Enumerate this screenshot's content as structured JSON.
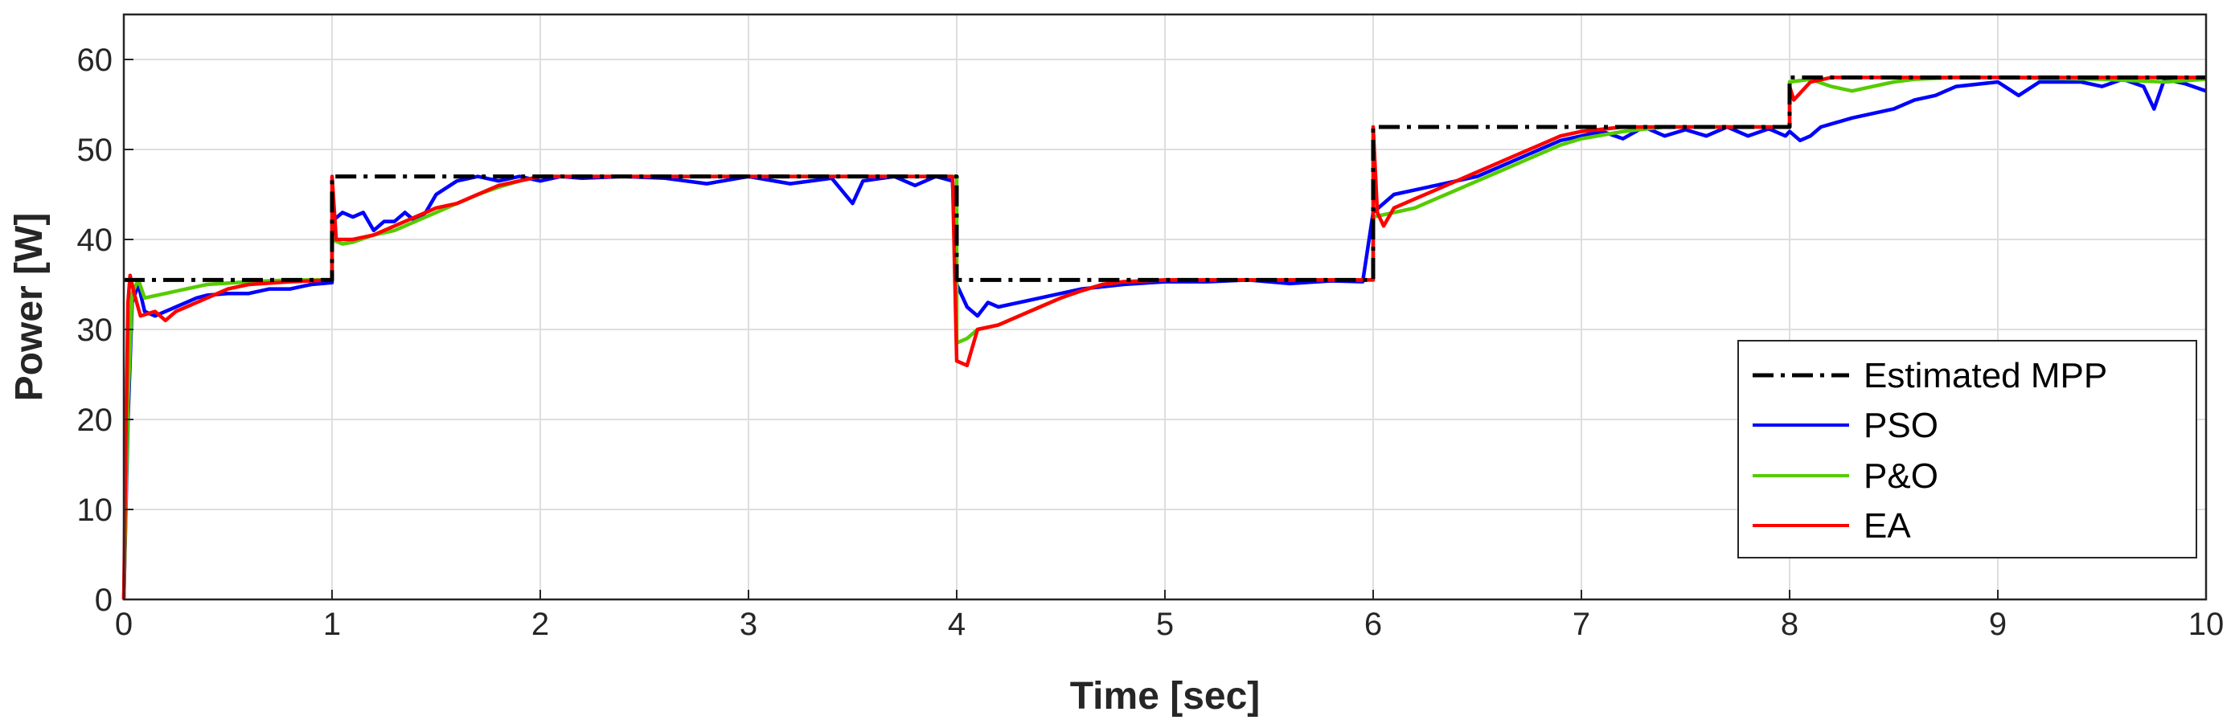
{
  "chart_data": {
    "type": "line",
    "title": "",
    "xlabel": "Time [sec]",
    "ylabel": "Power [W]",
    "xlim": [
      0,
      10
    ],
    "ylim": [
      0,
      65
    ],
    "xticks": [
      0,
      1,
      2,
      3,
      4,
      5,
      6,
      7,
      8,
      9,
      10
    ],
    "yticks": [
      0,
      10,
      20,
      30,
      40,
      50,
      60
    ],
    "grid": true,
    "legend_position": "bottom-right",
    "series": [
      {
        "name": "Estimated MPP",
        "color": "#000000",
        "style": "dash-dot",
        "points": [
          [
            0,
            35.5
          ],
          [
            1,
            35.5
          ],
          [
            1,
            47
          ],
          [
            4,
            47
          ],
          [
            4,
            35.5
          ],
          [
            6,
            35.5
          ],
          [
            6,
            52.5
          ],
          [
            8,
            52.5
          ],
          [
            8,
            58
          ],
          [
            10,
            58
          ]
        ]
      },
      {
        "name": "PSO",
        "color": "#0000ff",
        "style": "solid",
        "points": [
          [
            0,
            0
          ],
          [
            0.02,
            20
          ],
          [
            0.04,
            33
          ],
          [
            0.07,
            35
          ],
          [
            0.1,
            32
          ],
          [
            0.15,
            31.5
          ],
          [
            0.2,
            32
          ],
          [
            0.25,
            32.5
          ],
          [
            0.3,
            33
          ],
          [
            0.35,
            33.5
          ],
          [
            0.4,
            33.8
          ],
          [
            0.5,
            34
          ],
          [
            0.6,
            34
          ],
          [
            0.7,
            34.5
          ],
          [
            0.8,
            34.5
          ],
          [
            0.9,
            35
          ],
          [
            1.0,
            35.2
          ],
          [
            1.0,
            42
          ],
          [
            1.05,
            43
          ],
          [
            1.1,
            42.5
          ],
          [
            1.15,
            43
          ],
          [
            1.2,
            41
          ],
          [
            1.25,
            42
          ],
          [
            1.3,
            42
          ],
          [
            1.35,
            43
          ],
          [
            1.4,
            42
          ],
          [
            1.45,
            43
          ],
          [
            1.5,
            45
          ],
          [
            1.6,
            46.5
          ],
          [
            1.7,
            47
          ],
          [
            1.8,
            46.5
          ],
          [
            1.9,
            47
          ],
          [
            2.0,
            46.5
          ],
          [
            2.1,
            47
          ],
          [
            2.2,
            46.8
          ],
          [
            2.4,
            47
          ],
          [
            2.6,
            46.8
          ],
          [
            2.8,
            46.2
          ],
          [
            3.0,
            47
          ],
          [
            3.2,
            46.2
          ],
          [
            3.4,
            46.8
          ],
          [
            3.5,
            44
          ],
          [
            3.55,
            46.5
          ],
          [
            3.7,
            47
          ],
          [
            3.8,
            46
          ],
          [
            3.9,
            47
          ],
          [
            3.98,
            46.5
          ],
          [
            4.0,
            35
          ],
          [
            4.05,
            32.5
          ],
          [
            4.1,
            31.5
          ],
          [
            4.15,
            33
          ],
          [
            4.2,
            32.5
          ],
          [
            4.3,
            33
          ],
          [
            4.4,
            33.5
          ],
          [
            4.5,
            34
          ],
          [
            4.6,
            34.5
          ],
          [
            4.8,
            35
          ],
          [
            5.0,
            35.3
          ],
          [
            5.2,
            35.3
          ],
          [
            5.4,
            35.5
          ],
          [
            5.6,
            35.1
          ],
          [
            5.8,
            35.4
          ],
          [
            5.95,
            35.3
          ],
          [
            6.0,
            43
          ],
          [
            6.1,
            45
          ],
          [
            6.2,
            45.5
          ],
          [
            6.3,
            46
          ],
          [
            6.4,
            46.5
          ],
          [
            6.5,
            47
          ],
          [
            6.6,
            48
          ],
          [
            6.7,
            49
          ],
          [
            6.8,
            50
          ],
          [
            6.9,
            51
          ],
          [
            7.0,
            51.5
          ],
          [
            7.1,
            52
          ],
          [
            7.2,
            51.2
          ],
          [
            7.3,
            52.5
          ],
          [
            7.4,
            51.5
          ],
          [
            7.5,
            52.2
          ],
          [
            7.6,
            51.5
          ],
          [
            7.7,
            52.5
          ],
          [
            7.8,
            51.5
          ],
          [
            7.9,
            52.3
          ],
          [
            7.98,
            51.5
          ],
          [
            8.0,
            52
          ],
          [
            8.05,
            51
          ],
          [
            8.1,
            51.5
          ],
          [
            8.15,
            52.5
          ],
          [
            8.3,
            53.5
          ],
          [
            8.4,
            54
          ],
          [
            8.5,
            54.5
          ],
          [
            8.6,
            55.5
          ],
          [
            8.7,
            56
          ],
          [
            8.8,
            57
          ],
          [
            9.0,
            57.5
          ],
          [
            9.1,
            56
          ],
          [
            9.2,
            57.5
          ],
          [
            9.4,
            57.5
          ],
          [
            9.5,
            57
          ],
          [
            9.6,
            57.8
          ],
          [
            9.7,
            57
          ],
          [
            9.75,
            54.5
          ],
          [
            9.8,
            57.8
          ],
          [
            9.9,
            57.3
          ],
          [
            10.0,
            56.5
          ]
        ]
      },
      {
        "name": "P&O",
        "color": "#55cc00",
        "style": "solid",
        "points": [
          [
            0,
            0
          ],
          [
            0.02,
            22
          ],
          [
            0.04,
            34
          ],
          [
            0.07,
            35.5
          ],
          [
            0.1,
            33.5
          ],
          [
            0.2,
            34
          ],
          [
            0.3,
            34.5
          ],
          [
            0.4,
            35
          ],
          [
            0.6,
            35.3
          ],
          [
            0.8,
            35.5
          ],
          [
            1.0,
            35.5
          ],
          [
            1.0,
            40
          ],
          [
            1.05,
            39.5
          ],
          [
            1.1,
            39.7
          ],
          [
            1.2,
            40.5
          ],
          [
            1.3,
            41
          ],
          [
            1.4,
            42
          ],
          [
            1.5,
            43
          ],
          [
            1.6,
            44
          ],
          [
            1.7,
            45
          ],
          [
            1.8,
            45.8
          ],
          [
            1.9,
            46.5
          ],
          [
            2.0,
            47
          ],
          [
            2.5,
            47
          ],
          [
            3.0,
            47
          ],
          [
            3.5,
            47
          ],
          [
            4.0,
            47
          ],
          [
            4.0,
            28.5
          ],
          [
            4.05,
            29
          ],
          [
            4.1,
            30
          ],
          [
            4.2,
            30.5
          ],
          [
            4.3,
            31.5
          ],
          [
            4.4,
            32.5
          ],
          [
            4.5,
            33.5
          ],
          [
            4.6,
            34.3
          ],
          [
            4.7,
            35
          ],
          [
            4.8,
            35.3
          ],
          [
            5.0,
            35.5
          ],
          [
            5.5,
            35.5
          ],
          [
            6.0,
            35.5
          ],
          [
            6.0,
            42.5
          ],
          [
            6.1,
            43
          ],
          [
            6.2,
            43.5
          ],
          [
            6.3,
            44.5
          ],
          [
            6.4,
            45.5
          ],
          [
            6.5,
            46.5
          ],
          [
            6.6,
            47.5
          ],
          [
            6.7,
            48.5
          ],
          [
            6.8,
            49.5
          ],
          [
            6.9,
            50.5
          ],
          [
            7.0,
            51.2
          ],
          [
            7.2,
            52
          ],
          [
            7.4,
            52.5
          ],
          [
            7.6,
            52.5
          ],
          [
            8.0,
            52.5
          ],
          [
            8.0,
            57.5
          ],
          [
            8.1,
            57.8
          ],
          [
            8.2,
            57
          ],
          [
            8.3,
            56.5
          ],
          [
            8.4,
            57
          ],
          [
            8.5,
            57.5
          ],
          [
            8.6,
            57.8
          ],
          [
            8.8,
            58
          ],
          [
            9.0,
            58
          ],
          [
            9.5,
            57.8
          ],
          [
            9.8,
            57.5
          ],
          [
            10.0,
            57.8
          ]
        ]
      },
      {
        "name": "EA",
        "color": "#ff0000",
        "style": "solid",
        "points": [
          [
            0,
            0
          ],
          [
            0.01,
            18
          ],
          [
            0.02,
            33
          ],
          [
            0.03,
            36
          ],
          [
            0.05,
            34
          ],
          [
            0.08,
            31.5
          ],
          [
            0.15,
            32
          ],
          [
            0.2,
            31
          ],
          [
            0.25,
            32
          ],
          [
            0.3,
            32.5
          ],
          [
            0.35,
            33
          ],
          [
            0.4,
            33.5
          ],
          [
            0.45,
            34
          ],
          [
            0.5,
            34.5
          ],
          [
            0.6,
            35
          ],
          [
            0.8,
            35.3
          ],
          [
            1.0,
            35.5
          ],
          [
            1.0,
            47
          ],
          [
            1.02,
            40
          ],
          [
            1.1,
            40
          ],
          [
            1.2,
            40.5
          ],
          [
            1.3,
            41.5
          ],
          [
            1.4,
            42.5
          ],
          [
            1.5,
            43.5
          ],
          [
            1.6,
            44
          ],
          [
            1.7,
            45
          ],
          [
            1.8,
            46
          ],
          [
            1.9,
            46.5
          ],
          [
            2.0,
            47
          ],
          [
            2.5,
            47
          ],
          [
            3.0,
            47
          ],
          [
            3.5,
            47
          ],
          [
            3.98,
            47
          ],
          [
            4.0,
            26.5
          ],
          [
            4.05,
            26
          ],
          [
            4.1,
            30
          ],
          [
            4.2,
            30.5
          ],
          [
            4.3,
            31.5
          ],
          [
            4.4,
            32.5
          ],
          [
            4.5,
            33.5
          ],
          [
            4.6,
            34.3
          ],
          [
            4.7,
            35
          ],
          [
            4.8,
            35.3
          ],
          [
            5.0,
            35.5
          ],
          [
            5.5,
            35.5
          ],
          [
            6.0,
            35.5
          ],
          [
            6.0,
            52.5
          ],
          [
            6.02,
            43
          ],
          [
            6.05,
            41.5
          ],
          [
            6.1,
            43.5
          ],
          [
            6.2,
            44.5
          ],
          [
            6.3,
            45.5
          ],
          [
            6.4,
            46.5
          ],
          [
            6.5,
            47.5
          ],
          [
            6.6,
            48.5
          ],
          [
            6.7,
            49.5
          ],
          [
            6.8,
            50.5
          ],
          [
            6.9,
            51.5
          ],
          [
            7.0,
            52
          ],
          [
            7.2,
            52.5
          ],
          [
            7.5,
            52.5
          ],
          [
            8.0,
            52.5
          ],
          [
            8.0,
            57
          ],
          [
            8.02,
            55.5
          ],
          [
            8.1,
            57.5
          ],
          [
            8.2,
            58
          ],
          [
            8.4,
            58
          ],
          [
            9.0,
            58
          ],
          [
            9.5,
            58
          ],
          [
            10.0,
            58
          ]
        ]
      }
    ]
  }
}
